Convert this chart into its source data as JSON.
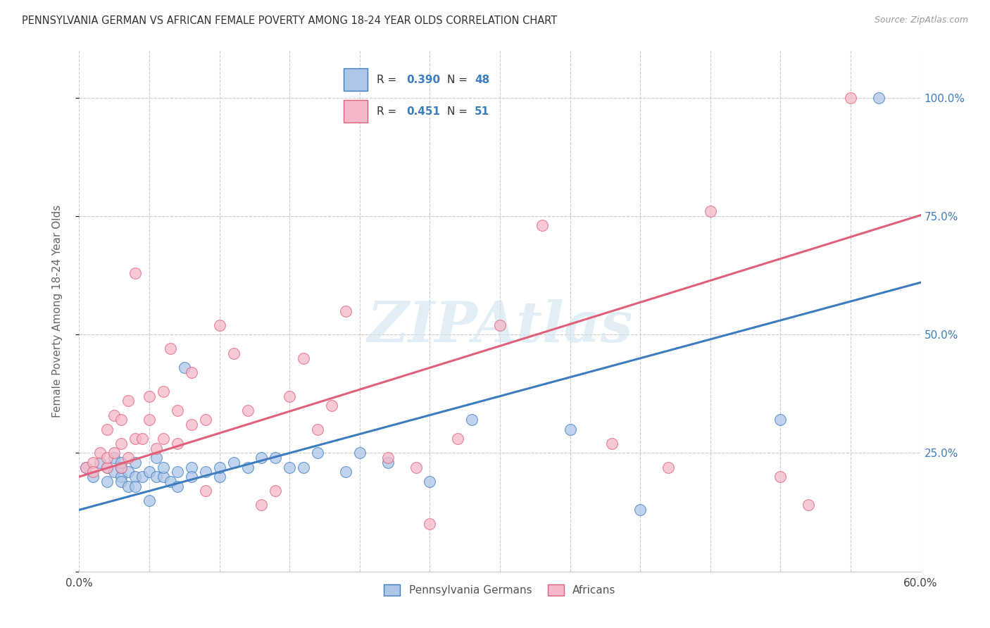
{
  "title": "PENNSYLVANIA GERMAN VS AFRICAN FEMALE POVERTY AMONG 18-24 YEAR OLDS CORRELATION CHART",
  "source": "Source: ZipAtlas.com",
  "ylabel": "Female Poverty Among 18-24 Year Olds",
  "xmin": 0.0,
  "xmax": 0.6,
  "ymin": 0.0,
  "ymax": 1.1,
  "watermark": "ZIPAtlas",
  "blue_R": 0.39,
  "blue_N": 48,
  "pink_R": 0.451,
  "pink_N": 51,
  "blue_color": "#aec6e8",
  "pink_color": "#f5b8c8",
  "blue_line_color": "#3d7dbf",
  "pink_line_color": "#e0607a",
  "right_tick_color": "#3d7dbf",
  "background_color": "#ffffff",
  "grid_color": "#cccccc",
  "blue_line_intercept": 0.13,
  "blue_line_slope": 0.8,
  "pink_line_intercept": 0.2,
  "pink_line_slope": 0.92,
  "blue_scatter_x": [
    0.005,
    0.01,
    0.015,
    0.02,
    0.02,
    0.025,
    0.025,
    0.03,
    0.03,
    0.03,
    0.03,
    0.035,
    0.035,
    0.04,
    0.04,
    0.04,
    0.045,
    0.05,
    0.05,
    0.055,
    0.055,
    0.06,
    0.06,
    0.065,
    0.07,
    0.07,
    0.075,
    0.08,
    0.08,
    0.09,
    0.1,
    0.1,
    0.11,
    0.12,
    0.13,
    0.14,
    0.15,
    0.16,
    0.17,
    0.19,
    0.2,
    0.22,
    0.25,
    0.28,
    0.35,
    0.4,
    0.5,
    0.57
  ],
  "blue_scatter_y": [
    0.22,
    0.2,
    0.23,
    0.22,
    0.19,
    0.21,
    0.24,
    0.2,
    0.22,
    0.19,
    0.23,
    0.21,
    0.18,
    0.2,
    0.23,
    0.18,
    0.2,
    0.21,
    0.15,
    0.2,
    0.24,
    0.2,
    0.22,
    0.19,
    0.21,
    0.18,
    0.43,
    0.22,
    0.2,
    0.21,
    0.2,
    0.22,
    0.23,
    0.22,
    0.24,
    0.24,
    0.22,
    0.22,
    0.25,
    0.21,
    0.25,
    0.23,
    0.19,
    0.32,
    0.3,
    0.13,
    0.32,
    1.0
  ],
  "pink_scatter_x": [
    0.005,
    0.01,
    0.01,
    0.015,
    0.02,
    0.02,
    0.02,
    0.025,
    0.025,
    0.03,
    0.03,
    0.03,
    0.035,
    0.035,
    0.04,
    0.04,
    0.045,
    0.05,
    0.05,
    0.055,
    0.06,
    0.06,
    0.065,
    0.07,
    0.07,
    0.08,
    0.08,
    0.09,
    0.09,
    0.1,
    0.11,
    0.12,
    0.13,
    0.14,
    0.15,
    0.16,
    0.17,
    0.18,
    0.19,
    0.22,
    0.24,
    0.25,
    0.27,
    0.3,
    0.33,
    0.38,
    0.42,
    0.45,
    0.5,
    0.52,
    0.55
  ],
  "pink_scatter_y": [
    0.22,
    0.23,
    0.21,
    0.25,
    0.22,
    0.3,
    0.24,
    0.25,
    0.33,
    0.22,
    0.27,
    0.32,
    0.36,
    0.24,
    0.28,
    0.63,
    0.28,
    0.32,
    0.37,
    0.26,
    0.28,
    0.38,
    0.47,
    0.27,
    0.34,
    0.42,
    0.31,
    0.32,
    0.17,
    0.52,
    0.46,
    0.34,
    0.14,
    0.17,
    0.37,
    0.45,
    0.3,
    0.35,
    0.55,
    0.24,
    0.22,
    0.1,
    0.28,
    0.52,
    0.73,
    0.27,
    0.22,
    0.76,
    0.2,
    0.14,
    1.0
  ]
}
